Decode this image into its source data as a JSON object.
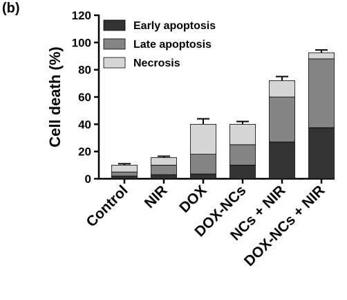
{
  "panel_label": "(b)",
  "chart_data": {
    "type": "bar",
    "stacked": true,
    "title": "",
    "xlabel": "",
    "ylabel": "Cell death (%)",
    "ylim": [
      0,
      120
    ],
    "yticks": [
      0,
      20,
      40,
      60,
      80,
      100,
      120
    ],
    "grid": false,
    "legend_position": "top-left",
    "categories": [
      "Control",
      "NIR",
      "DOX",
      "DOX-NCs",
      "NCs + NIR",
      "DOX-NCs + NIR"
    ],
    "series": [
      {
        "name": "Early apoptosis",
        "color": "#333333",
        "values": [
          2,
          3,
          3.5,
          10,
          27,
          37.5
        ]
      },
      {
        "name": "Late apoptosis",
        "color": "#858585",
        "values": [
          3,
          7,
          14.5,
          15,
          33,
          50.5
        ]
      },
      {
        "name": "Necrosis",
        "color": "#d6d6d6",
        "values": [
          5,
          5.5,
          22,
          15,
          12,
          4.5
        ]
      }
    ],
    "error_bars": [
      1,
      1,
      4,
      2,
      3,
      2
    ]
  }
}
